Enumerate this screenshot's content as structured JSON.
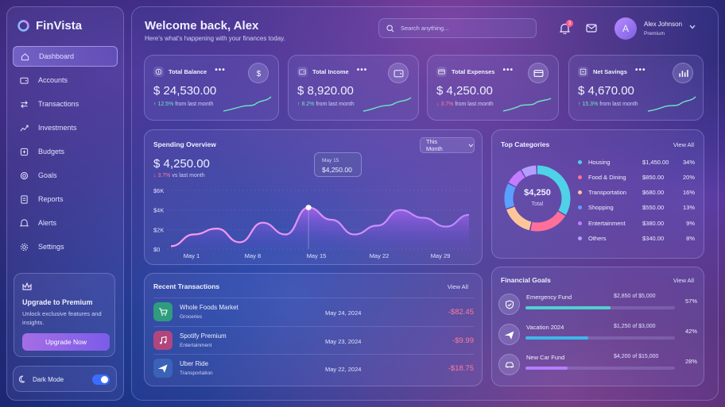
{
  "brand": {
    "name": "FinVista"
  },
  "sidebar": {
    "items": [
      {
        "label": "Dashboard",
        "icon": "home-icon"
      },
      {
        "label": "Accounts",
        "icon": "wallet-icon"
      },
      {
        "label": "Transactions",
        "icon": "transfer-icon"
      },
      {
        "label": "Investments",
        "icon": "chart-icon"
      },
      {
        "label": "Budgets",
        "icon": "budget-icon"
      },
      {
        "label": "Goals",
        "icon": "target-icon"
      },
      {
        "label": "Reports",
        "icon": "report-icon"
      },
      {
        "label": "Alerts",
        "icon": "bell-icon"
      },
      {
        "label": "Settings",
        "icon": "gear-icon"
      }
    ],
    "active": "Dashboard"
  },
  "upgrade": {
    "title": "Upgrade to Premium",
    "desc": "Unlock exclusive features and insights.",
    "button": "Upgrade Now"
  },
  "darkmode": {
    "label": "Dark Mode",
    "on": true
  },
  "header": {
    "welcome": "Welcome back, Alex",
    "subtitle": "Here's what's happening with your finances today.",
    "search_placeholder": "Search anything...",
    "notif_count": "3",
    "user_name": "Alex Johnson",
    "user_role": "Premium",
    "avatar_letter": "A"
  },
  "stats": [
    {
      "label": "Total Balance",
      "value": "$ 24,530.00",
      "change": "12.5%",
      "suffix": " from last month",
      "dir": "up"
    },
    {
      "label": "Total Income",
      "value": "$ 8,920.00",
      "change": "8.2%",
      "suffix": " from last month",
      "dir": "up"
    },
    {
      "label": "Total Expenses",
      "value": "$ 4,250.00",
      "change": "3.7%",
      "suffix": " from last month",
      "dir": "down"
    },
    {
      "label": "Net Savings",
      "value": "$ 4,670.00",
      "change": "15.3%",
      "suffix": " from last month",
      "dir": "up"
    }
  ],
  "spending": {
    "title": "Spending Overview",
    "value": "$ 4,250.00",
    "change": "3.7%",
    "suffix": " vs last month",
    "period": "This Month",
    "tooltip": {
      "date": "May 15",
      "value": "$4,250.00"
    },
    "y_ticks": [
      "$6K",
      "$4K",
      "$2K",
      "$0"
    ],
    "x_ticks": [
      "May 1",
      "May 8",
      "May 15",
      "May 22",
      "May 29"
    ]
  },
  "chart_data": {
    "type": "area",
    "title": "Spending Overview",
    "x": [
      "May 1",
      "May 3",
      "May 6",
      "May 8",
      "May 10",
      "May 12",
      "May 15",
      "May 18",
      "May 20",
      "May 22",
      "May 25",
      "May 27",
      "May 29",
      "May 31"
    ],
    "series": [
      {
        "values": [
          300,
          1500,
          2100,
          700,
          2700,
          1500,
          4250,
          3000,
          1500,
          2400,
          4000,
          3200,
          2300,
          3500
        ]
      }
    ],
    "ylim": [
      0,
      6000
    ],
    "grid": true
  },
  "topcat": {
    "title": "Top Categories",
    "view_all": "View All",
    "total_value": "$4,250",
    "total_label": "Total",
    "items": [
      {
        "name": "Housing",
        "amount": "$1,450.00",
        "pct": "34%",
        "color": "#4fd1e8",
        "share": 34
      },
      {
        "name": "Food & Dining",
        "amount": "$850.00",
        "pct": "20%",
        "color": "#ff6f9a",
        "share": 20
      },
      {
        "name": "Transportation",
        "amount": "$680.00",
        "pct": "16%",
        "color": "#ffc59a",
        "share": 16
      },
      {
        "name": "Shopping",
        "amount": "$550.00",
        "pct": "13%",
        "color": "#5aa0ff",
        "share": 13
      },
      {
        "name": "Entertainment",
        "amount": "$380.00",
        "pct": "9%",
        "color": "#c17cff",
        "share": 9
      },
      {
        "name": "Others",
        "amount": "$340.00",
        "pct": "8%",
        "color": "#b59cff",
        "share": 8
      }
    ]
  },
  "recent": {
    "title": "Recent Transactions",
    "view_all": "View All",
    "items": [
      {
        "name": "Whole Foods Market",
        "category": "Groceries",
        "date": "May 24, 2024",
        "amount": "-$82.45",
        "icon": "cart-icon",
        "color": "#2f9c7e"
      },
      {
        "name": "Spotify Premium",
        "category": "Entertainment",
        "date": "May 23, 2024",
        "amount": "-$9.99",
        "icon": "music-icon",
        "color": "#b0467d"
      },
      {
        "name": "Uber Ride",
        "category": "Transportation",
        "date": "May 22, 2024",
        "amount": "-$18.75",
        "icon": "plane-icon",
        "color": "#3a63b8"
      }
    ]
  },
  "goals": {
    "title": "Financial Goals",
    "view_all": "View All",
    "items": [
      {
        "name": "Emergency Fund",
        "amount": "$2,850 of $5,000",
        "pct": "57%",
        "progress": 0.57,
        "icon": "shield-icon",
        "color": "#4fd1d0"
      },
      {
        "name": "Vacation 2024",
        "amount": "$1,250 of $3,000",
        "pct": "42%",
        "progress": 0.42,
        "icon": "plane-icon",
        "color": "#3fb6e8"
      },
      {
        "name": "New Car Fund",
        "amount": "$4,200 of $15,000",
        "pct": "28%",
        "progress": 0.28,
        "icon": "car-icon",
        "color": "#b57cff"
      }
    ]
  }
}
